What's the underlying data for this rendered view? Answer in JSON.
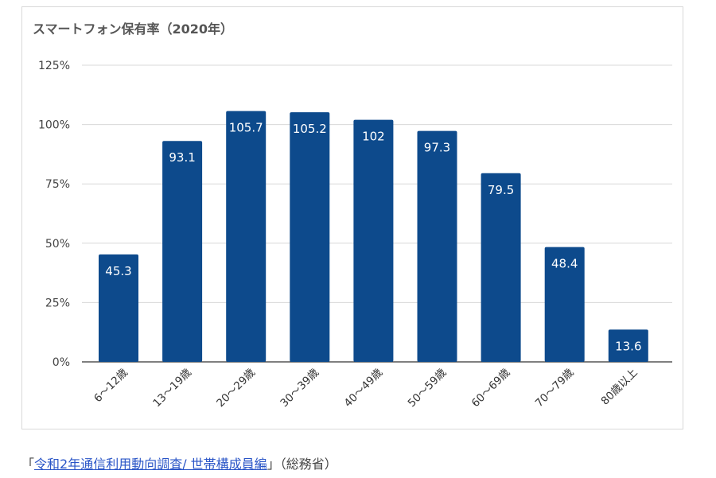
{
  "chart_data": {
    "type": "bar",
    "title": "スマートフォン保有率（2020年）",
    "categories": [
      "6〜12歳",
      "13〜19歳",
      "20〜29歳",
      "30〜39歳",
      "40〜49歳",
      "50〜59歳",
      "60〜69歳",
      "70〜79歳",
      "80歳以上"
    ],
    "values": [
      45.3,
      93.1,
      105.7,
      105.2,
      102,
      97.3,
      79.5,
      48.4,
      13.6
    ],
    "value_labels": [
      "45.3",
      "93.1",
      "105.7",
      "105.2",
      "102",
      "97.3",
      "79.5",
      "48.4",
      "13.6"
    ],
    "yticks": [
      "0%",
      "25%",
      "50%",
      "75%",
      "100%",
      "125%"
    ],
    "ytick_values": [
      0,
      25,
      50,
      75,
      100,
      125
    ],
    "ylim": [
      0,
      125
    ],
    "grid": true,
    "bar_color": "#0d4a8c"
  },
  "source": {
    "open_bracket": "「",
    "link_text": "令和2年通信利用動向調査/ 世帯構成員編",
    "close_text": "」（総務省）"
  }
}
